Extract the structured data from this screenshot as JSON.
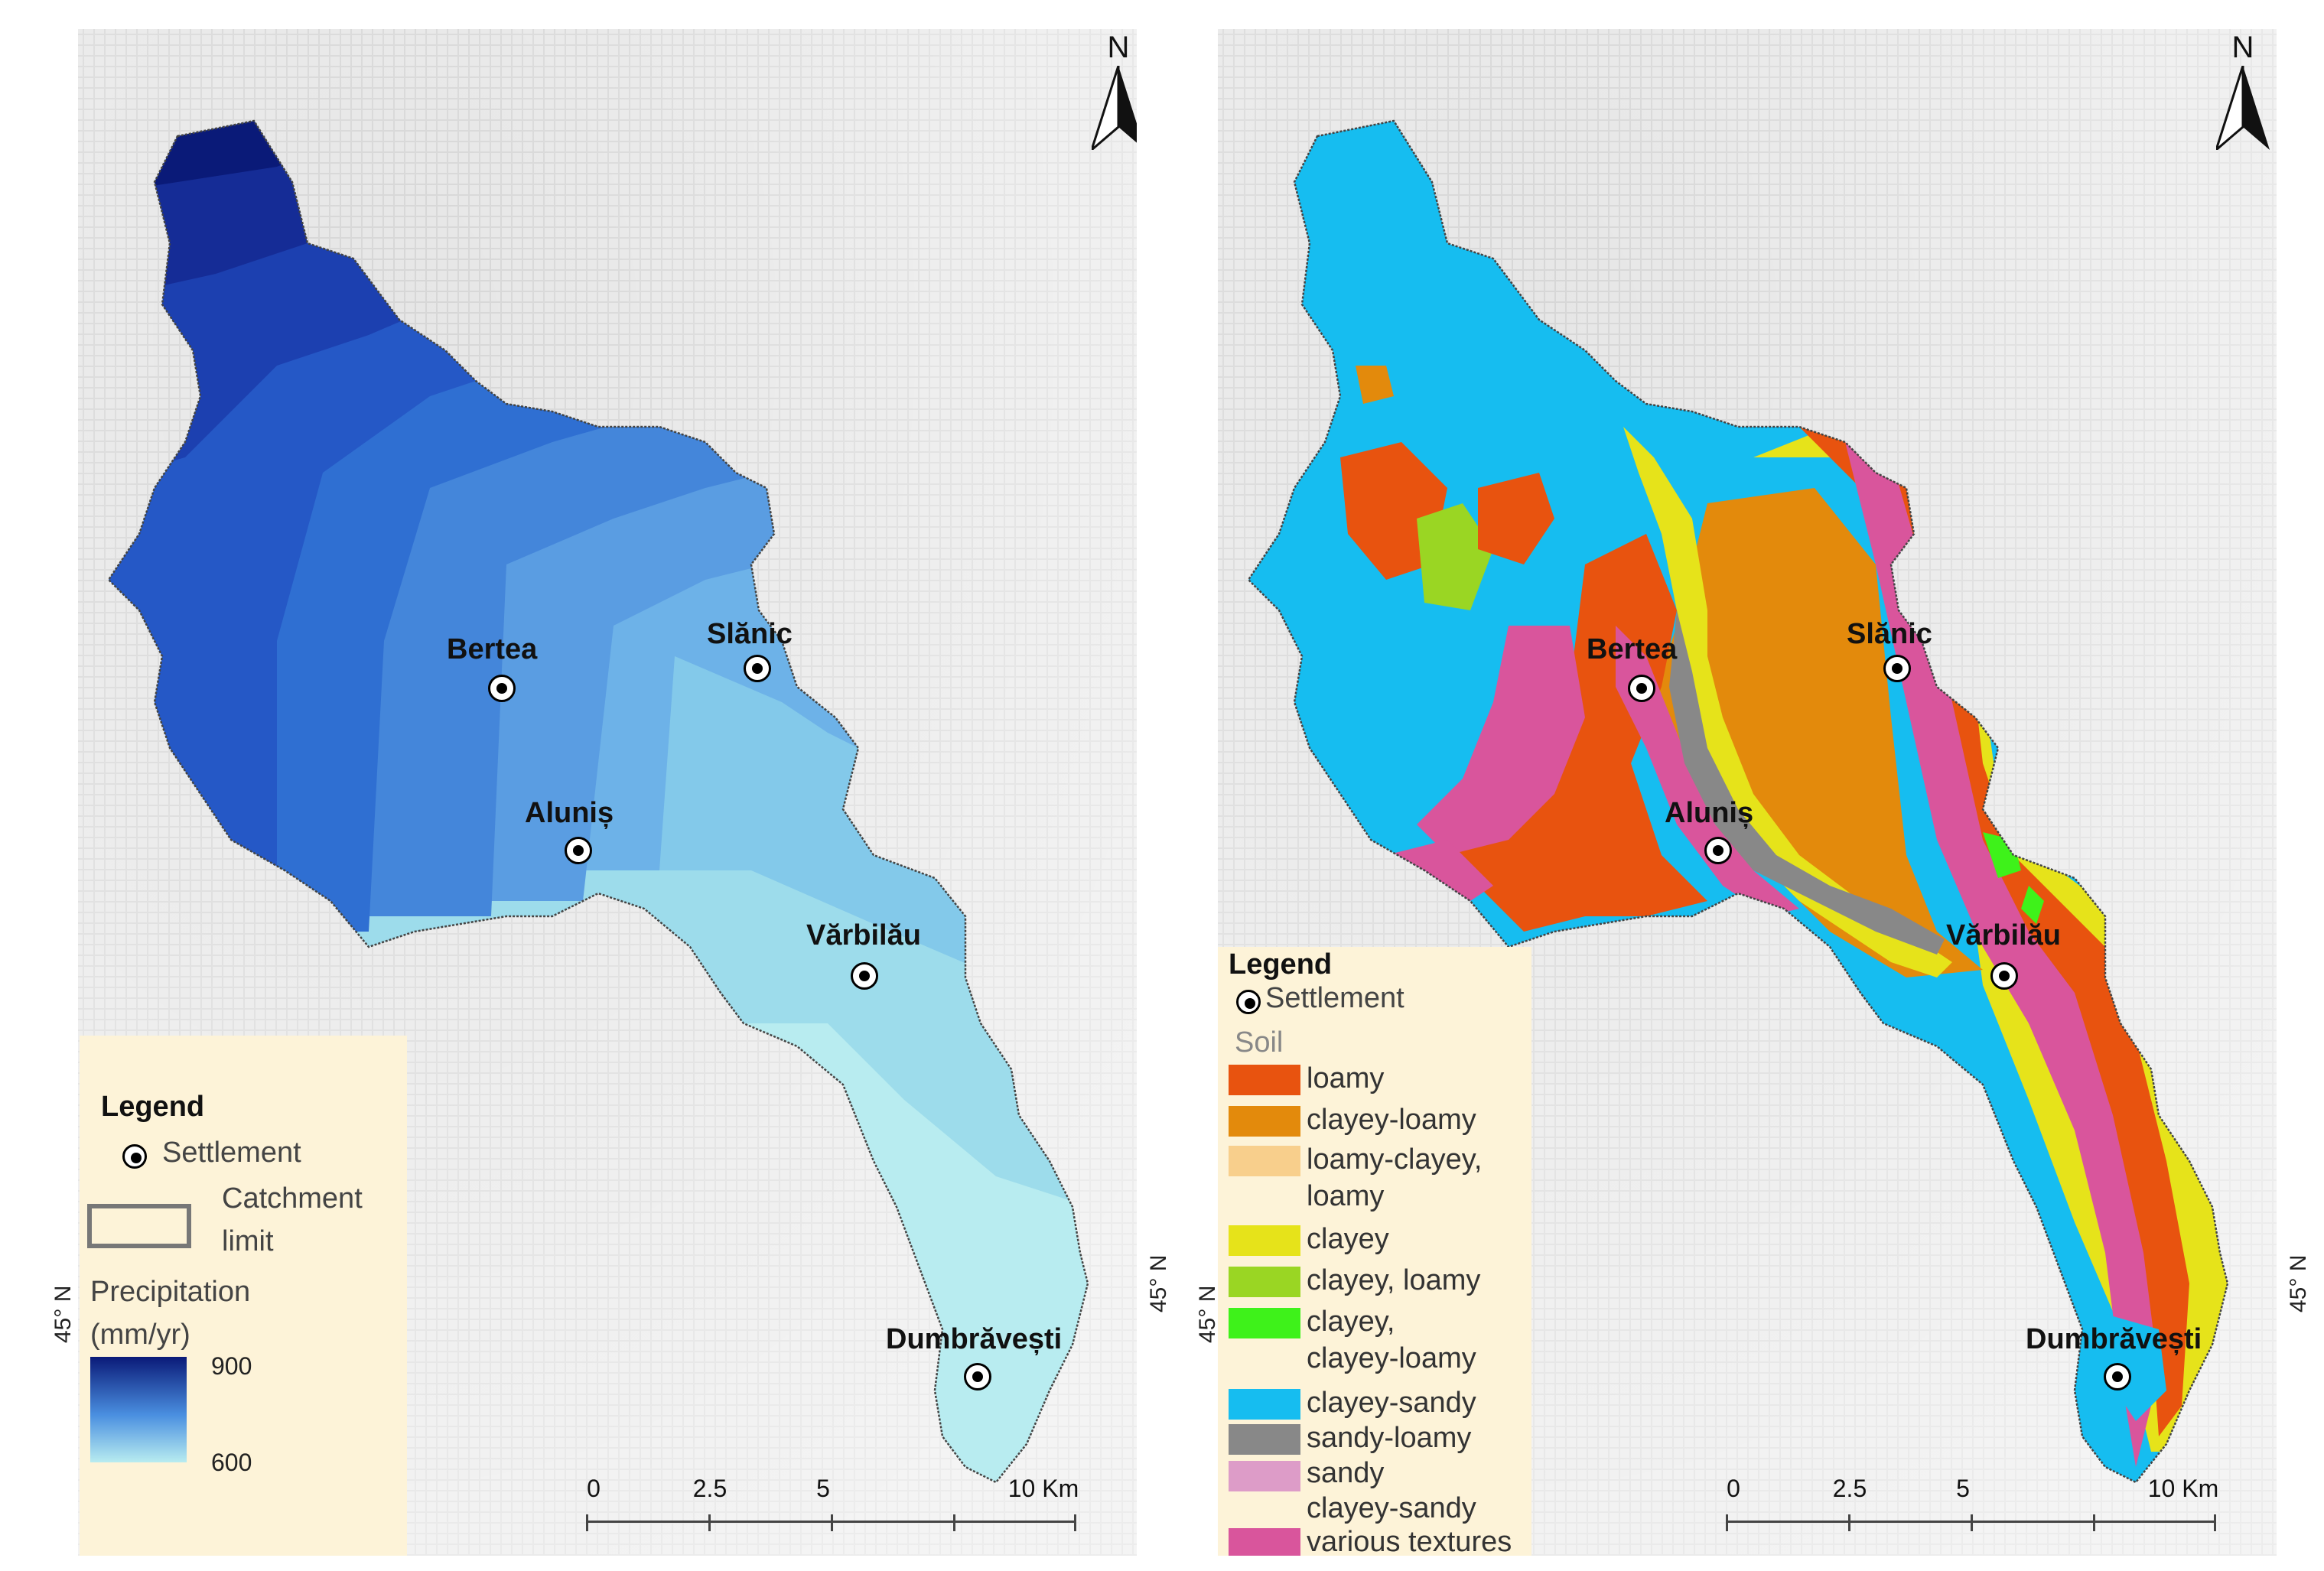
{
  "north_letter": "N",
  "latitude_label": "45° N",
  "settlements": {
    "bertea": "Bertea",
    "slanic": "Slănic",
    "alunis": "Aluniș",
    "varbilau": "Vărbilău",
    "dumbravesti": "Dumbrăvești"
  },
  "scale_bar": {
    "ticks": [
      "0",
      "2.5",
      "5",
      "10 Km"
    ]
  },
  "left_map": {
    "legend": {
      "title": "Legend",
      "settlement": "Settlement",
      "catchment_line1": "Catchment",
      "catchment_line2": "limit",
      "precip_line1": "Precipitation",
      "precip_line2": "(mm/yr)",
      "ramp_max": "900",
      "ramp_min": "600"
    },
    "colors": {
      "ramp_high": "#0a1a78",
      "ramp_low": "#b8ecf0"
    }
  },
  "right_map": {
    "legend": {
      "title": "Legend",
      "settlement": "Settlement",
      "soil_heading": "Soil",
      "classes": [
        {
          "line1": "loamy",
          "line2": "",
          "color": "#e8530f"
        },
        {
          "line1": "clayey-loamy",
          "line2": "",
          "color": "#e38a0c"
        },
        {
          "line1": "loamy-clayey,",
          "line2": "loamy",
          "color": "#f8cf8c"
        },
        {
          "line1": "clayey",
          "line2": "",
          "color": "#e6e31a"
        },
        {
          "line1": "clayey, loamy",
          "line2": "",
          "color": "#9ad623"
        },
        {
          "line1": "clayey,",
          "line2": "clayey-loamy",
          "color": "#3ef21a"
        },
        {
          "line1": "clayey-sandy",
          "line2": "",
          "color": "#16bdf0"
        },
        {
          "line1": "sandy-loamy",
          "line2": "",
          "color": "#888888"
        },
        {
          "line1": "sandy",
          "line2": "clayey-sandy",
          "color": "#dd9cc8"
        },
        {
          "line1": "various textures",
          "line2": "",
          "color": "#d9559c"
        }
      ]
    }
  }
}
